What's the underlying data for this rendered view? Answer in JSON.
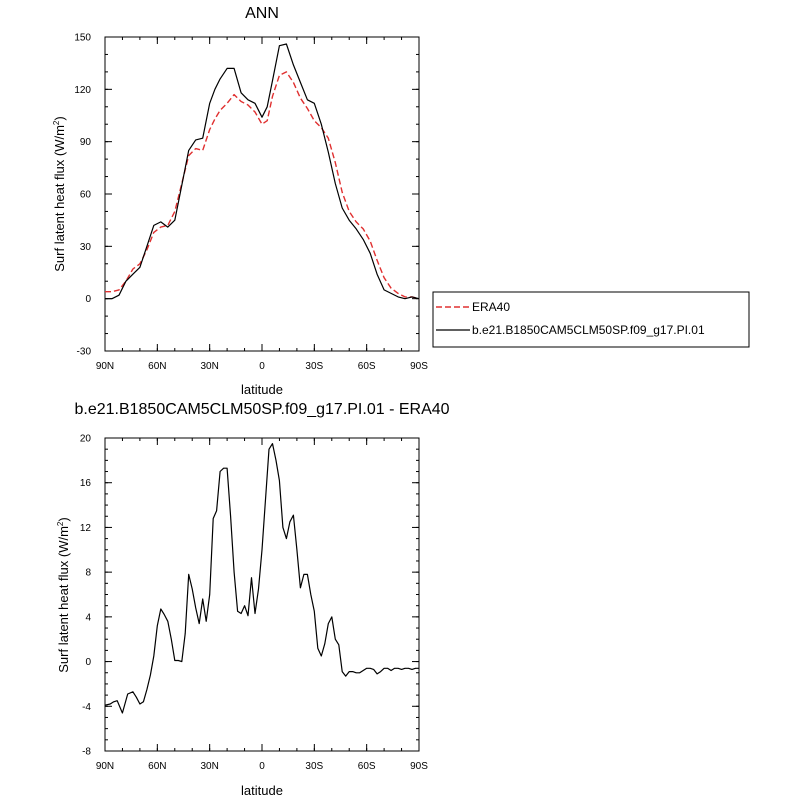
{
  "chart_data": [
    {
      "type": "line",
      "title": "ANN",
      "xlabel": "latitude",
      "ylabel": "Surf latent heat flux (W/m",
      "ylabel_sup": "2",
      "ylabel_tail": ")",
      "xlim": [
        90,
        -90
      ],
      "ylim": [
        -30,
        150
      ],
      "x_ticks": [
        90,
        60,
        30,
        0,
        -30,
        -60,
        -90
      ],
      "x_tick_labels": [
        "90N",
        "60N",
        "30N",
        "0",
        "30S",
        "60S",
        "90S"
      ],
      "y_ticks": [
        -30,
        0,
        30,
        60,
        90,
        120,
        150
      ],
      "y_tick_labels": [
        "-30",
        "0",
        "30",
        "60",
        "90",
        "120",
        "150"
      ],
      "y_minor_step": 10,
      "legend": "right-bottom",
      "series": [
        {
          "name": "ERA40",
          "color": "#e03030",
          "dash": "dashed",
          "x": [
            90,
            86,
            82,
            78,
            74,
            70,
            66,
            62,
            58,
            54,
            50,
            46,
            42,
            38,
            34,
            30,
            27,
            24,
            20,
            16,
            12,
            8,
            4,
            0,
            -3,
            -6,
            -10,
            -14,
            -18,
            -22,
            -26,
            -30,
            -34,
            -38,
            -42,
            -46,
            -50,
            -54,
            -58,
            -62,
            -66,
            -70,
            -74,
            -78,
            -82,
            -86,
            -90
          ],
          "values": [
            4,
            4,
            5,
            10,
            17,
            20,
            28,
            38,
            41,
            42,
            50,
            66,
            82,
            86,
            85,
            97,
            103,
            108,
            112,
            117,
            113,
            111,
            107,
            100,
            102,
            116,
            128,
            130,
            124,
            115,
            109,
            102,
            98,
            92,
            78,
            61,
            50,
            44,
            40,
            33,
            22,
            12,
            6,
            3,
            1,
            1,
            0
          ]
        },
        {
          "name": "b.e21.B1850CAM5CLM50SP.f09_g17.PI.01",
          "color": "#000000",
          "dash": "solid",
          "x": [
            90,
            86,
            82,
            78,
            74,
            70,
            66,
            62,
            58,
            54,
            50,
            46,
            42,
            38,
            34,
            30,
            27,
            24,
            20,
            16,
            12,
            8,
            4,
            0,
            -3,
            -6,
            -10,
            -14,
            -18,
            -22,
            -26,
            -30,
            -34,
            -38,
            -42,
            -46,
            -50,
            -54,
            -58,
            -62,
            -66,
            -70,
            -74,
            -78,
            -82,
            -86,
            -90
          ],
          "values": [
            0,
            0,
            2,
            10,
            14,
            18,
            30,
            42,
            44,
            41,
            45,
            65,
            85,
            91,
            92,
            112,
            120,
            126,
            132,
            132,
            118,
            114,
            112,
            104,
            110,
            125,
            145,
            146,
            134,
            124,
            114,
            112,
            100,
            84,
            66,
            52,
            45,
            40,
            34,
            26,
            14,
            5,
            3,
            1,
            0,
            1,
            0
          ]
        }
      ]
    },
    {
      "type": "line",
      "title": "b.e21.B1850CAM5CLM50SP.f09_g17.PI.01 - ERA40",
      "xlabel": "latitude",
      "ylabel": "Surf latent heat flux (W/m",
      "ylabel_sup": "2",
      "ylabel_tail": ")",
      "xlim": [
        90,
        -90
      ],
      "ylim": [
        -8,
        20
      ],
      "x_ticks": [
        90,
        60,
        30,
        0,
        -30,
        -60,
        -90
      ],
      "x_tick_labels": [
        "90N",
        "60N",
        "30N",
        "0",
        "30S",
        "60S",
        "90S"
      ],
      "y_ticks": [
        -8,
        -4,
        0,
        4,
        8,
        12,
        16,
        20
      ],
      "y_tick_labels": [
        "-8",
        "-4",
        "0",
        "4",
        "8",
        "12",
        "16",
        "20"
      ],
      "y_minor_step": 1,
      "series": [
        {
          "color": "#000000",
          "dash": "solid",
          "x": [
            90,
            87,
            85,
            83,
            80,
            77,
            74,
            72,
            70,
            68,
            66,
            64,
            62,
            60,
            58,
            56,
            54,
            52,
            50,
            48,
            46,
            44,
            42,
            40,
            38,
            36,
            34,
            32,
            30,
            28,
            26,
            24,
            22,
            20,
            18,
            16,
            14,
            12,
            10,
            8,
            6,
            4,
            2,
            0,
            -2,
            -4,
            -6,
            -8,
            -10,
            -12,
            -14,
            -16,
            -18,
            -20,
            -22,
            -24,
            -26,
            -28,
            -30,
            -32,
            -34,
            -36,
            -38,
            -40,
            -42,
            -44,
            -46,
            -48,
            -50,
            -52,
            -54,
            -56,
            -58,
            -60,
            -62,
            -64,
            -66,
            -68,
            -70,
            -72,
            -74,
            -76,
            -78,
            -80,
            -82,
            -84,
            -86,
            -88,
            -90
          ],
          "values": [
            -3.9,
            -3.8,
            -3.6,
            -3.5,
            -4.6,
            -2.9,
            -2.7,
            -3.2,
            -3.8,
            -3.6,
            -2.5,
            -1.2,
            0.5,
            3.2,
            4.7,
            4.2,
            3.6,
            2.0,
            0.1,
            0.1,
            0.0,
            2.5,
            7.8,
            6.5,
            4.8,
            3.4,
            5.6,
            3.6,
            6.0,
            12.8,
            13.5,
            17.0,
            17.3,
            17.3,
            13.0,
            8.0,
            4.5,
            4.3,
            5.0,
            4.1,
            7.5,
            4.3,
            6.5,
            10.0,
            14.5,
            19.0,
            19.5,
            18.0,
            16.2,
            12.0,
            11.0,
            12.5,
            13.1,
            10.0,
            6.6,
            7.8,
            7.8,
            6.0,
            4.5,
            1.2,
            0.5,
            1.6,
            3.4,
            4.0,
            2.0,
            1.5,
            -0.9,
            -1.3,
            -0.9,
            -0.9,
            -1.0,
            -1.0,
            -0.8,
            -0.6,
            -0.6,
            -0.7,
            -1.1,
            -0.9,
            -0.6,
            -0.6,
            -0.8,
            -0.6,
            -0.6,
            -0.7,
            -0.6,
            -0.6,
            -0.7,
            -0.6,
            -0.6
          ]
        }
      ]
    }
  ]
}
